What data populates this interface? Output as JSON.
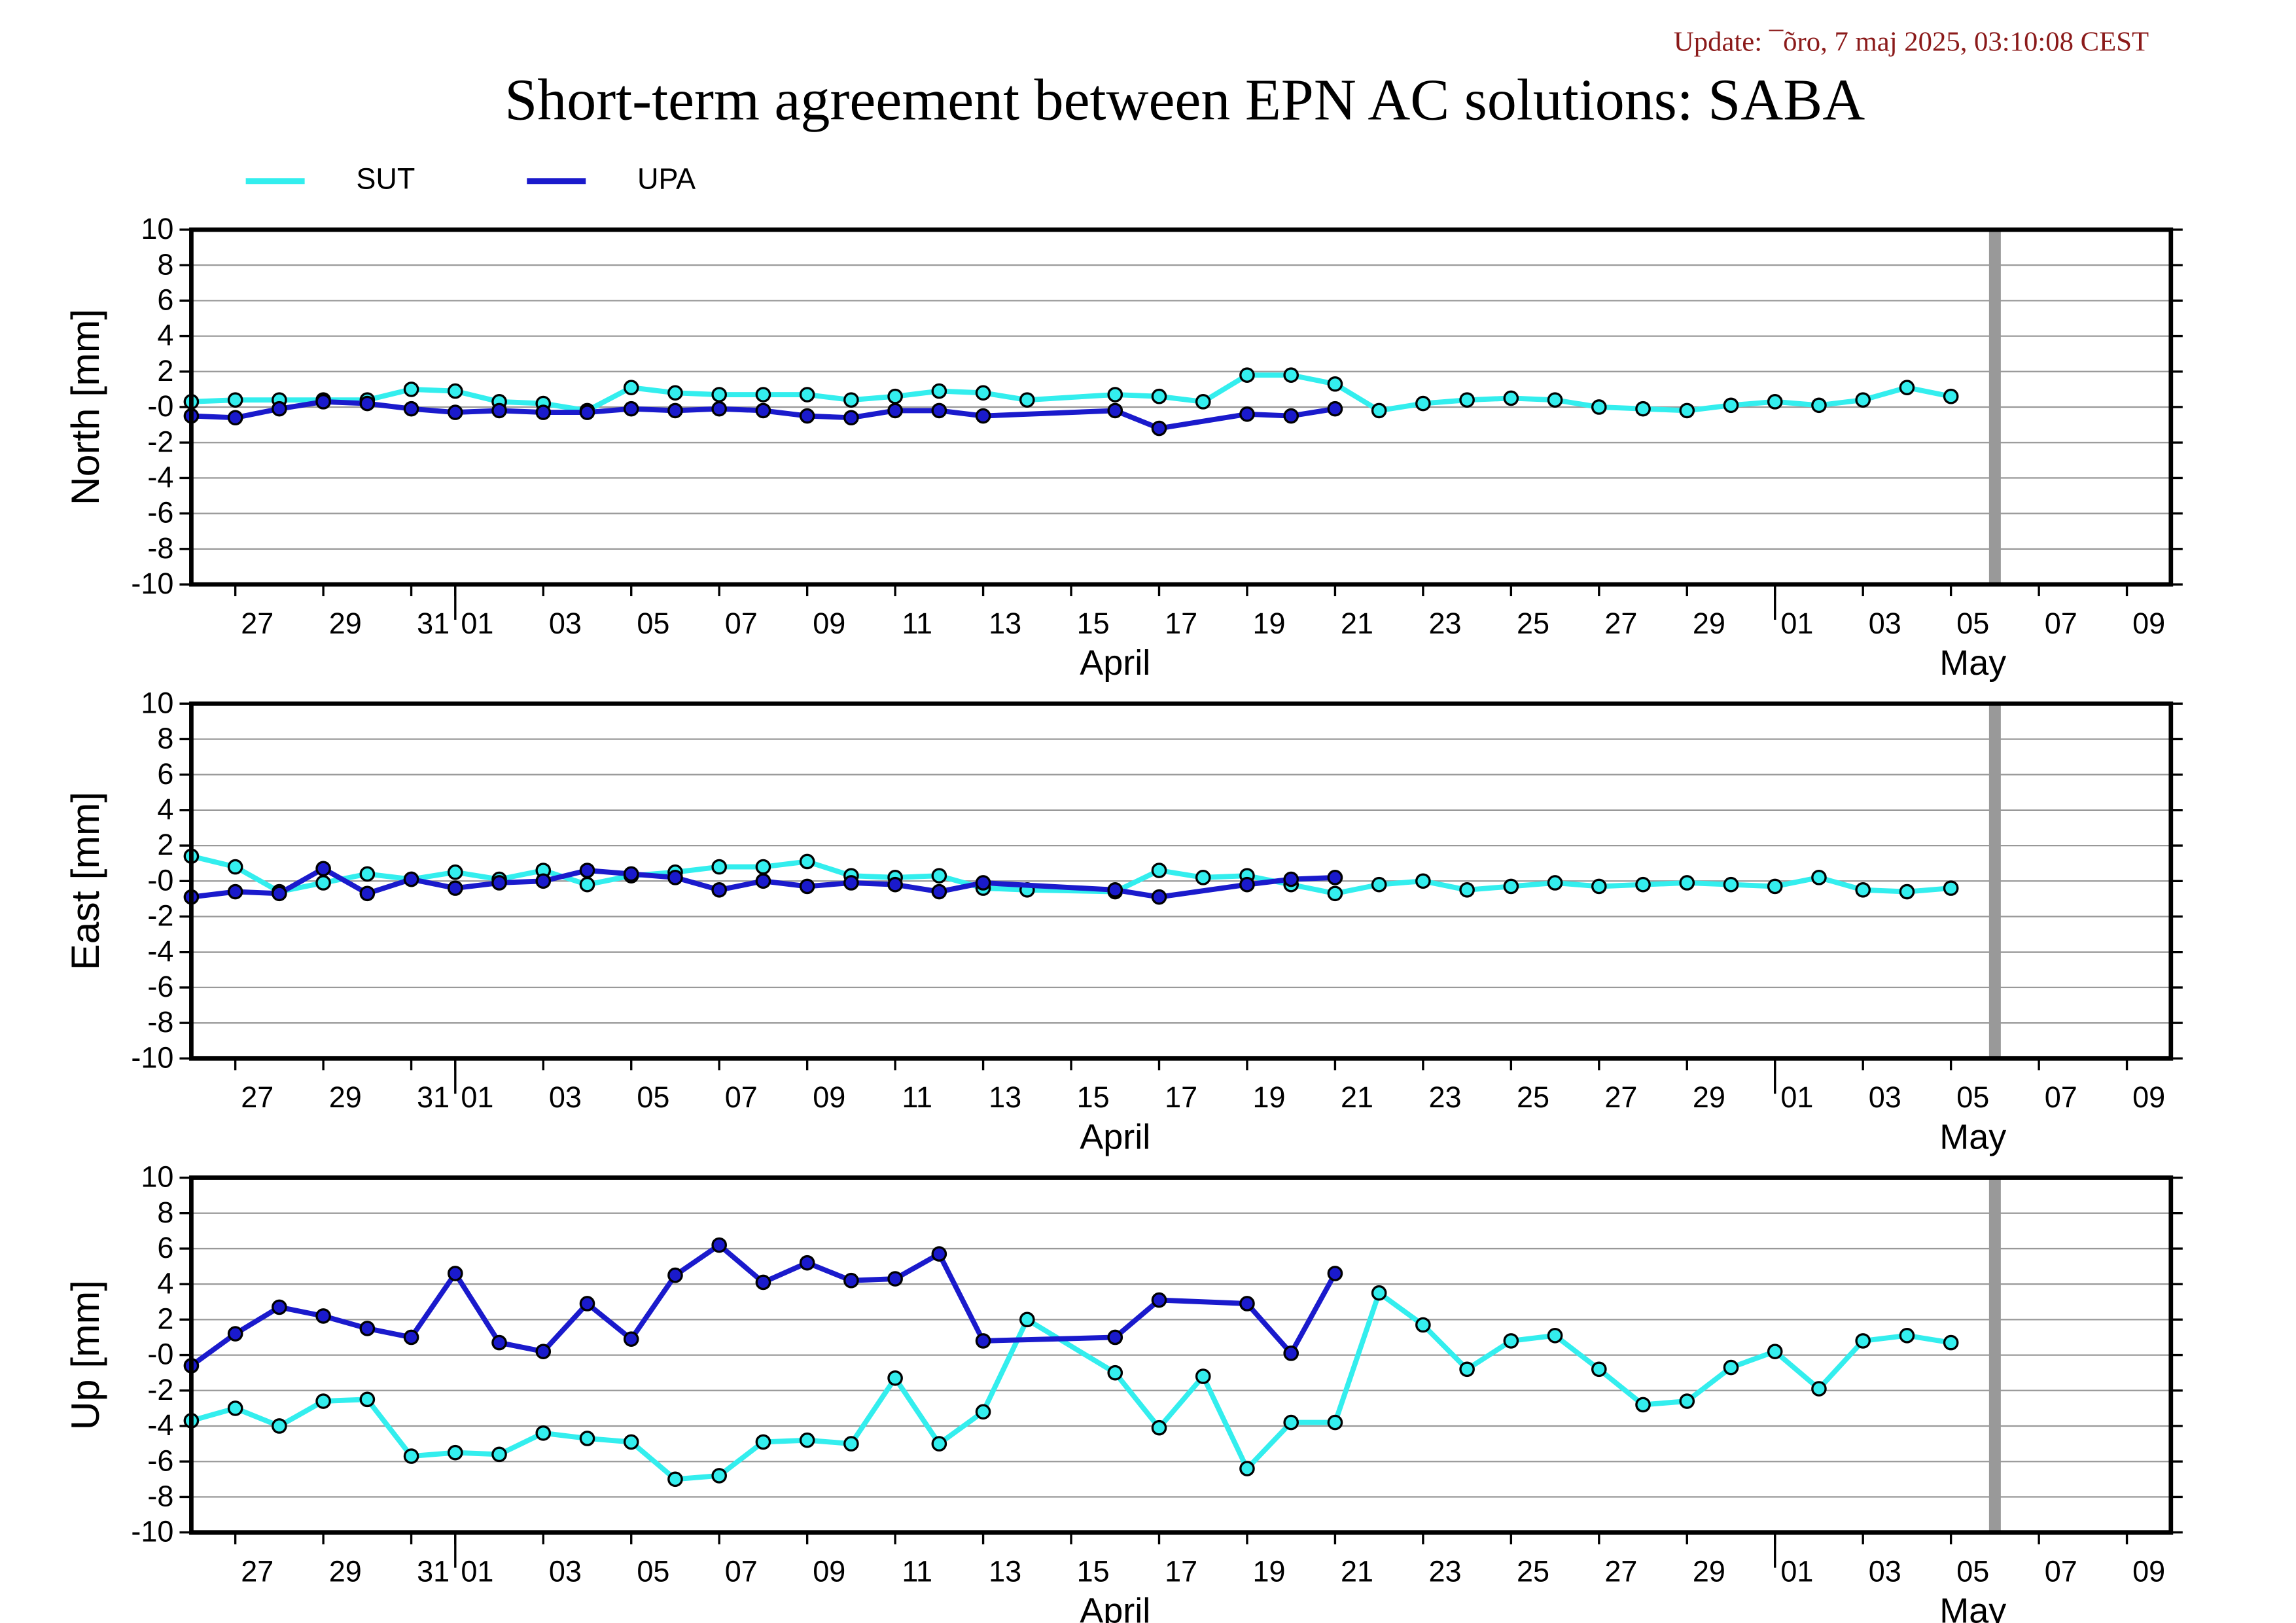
{
  "title": "Short-term agreement between EPN AC solutions: SABA",
  "update": "Update: ¯õro, 7 maj 2025, 03:10:08 CEST",
  "chart_data": [
    {
      "type": "line",
      "ylabel": "North [mm]",
      "grid": true,
      "xlim": [
        "03-26",
        "05-10"
      ],
      "vline": "05-06",
      "ylim": [
        -10,
        10
      ],
      "yticks": [
        -10,
        -8,
        -6,
        -4,
        -2,
        {
          "value": 0,
          "label": "-0"
        },
        2,
        4,
        6,
        8,
        10
      ],
      "xticks": [
        {
          "value": "03-27",
          "label": "27"
        },
        {
          "value": "03-29",
          "label": "29"
        },
        {
          "value": "03-31",
          "label": "31"
        },
        {
          "value": "04-01",
          "label": "01"
        },
        {
          "value": "04-03",
          "label": "03"
        },
        {
          "value": "04-05",
          "label": "05"
        },
        {
          "value": "04-07",
          "label": "07"
        },
        {
          "value": "04-09",
          "label": "09"
        },
        {
          "value": "04-11",
          "label": "11"
        },
        {
          "value": "04-13",
          "label": "13"
        },
        {
          "value": "04-15",
          "label": "15"
        },
        {
          "value": "04-17",
          "label": "17"
        },
        {
          "value": "04-19",
          "label": "19"
        },
        {
          "value": "04-21",
          "label": "21"
        },
        {
          "value": "04-23",
          "label": "23"
        },
        {
          "value": "04-25",
          "label": "25"
        },
        {
          "value": "04-27",
          "label": "27"
        },
        {
          "value": "04-29",
          "label": "29"
        },
        {
          "value": "05-01",
          "label": "01"
        },
        {
          "value": "05-03",
          "label": "03"
        },
        {
          "value": "05-05",
          "label": "05"
        },
        {
          "value": "05-07",
          "label": "07"
        },
        {
          "value": "05-09",
          "label": "09"
        }
      ],
      "months": [
        "April",
        "May"
      ],
      "series": [
        {
          "name": "SUT",
          "color": "#33eeee",
          "x": [
            "03-26",
            "03-27",
            "03-28",
            "03-29",
            "03-30",
            "03-31",
            "04-01",
            "04-02",
            "04-03",
            "04-04",
            "04-05",
            "04-06",
            "04-07",
            "04-08",
            "04-09",
            "04-10",
            "04-11",
            "04-12",
            "04-13",
            "04-14",
            "04-16",
            "04-17",
            "04-18",
            "04-19",
            "04-20",
            "04-21",
            "04-22",
            "04-23",
            "04-24",
            "04-25",
            "04-26",
            "04-27",
            "04-28",
            "04-29",
            "04-30",
            "05-01",
            "05-02",
            "05-03",
            "05-04",
            "05-05"
          ],
          "values": [
            0.3,
            0.4,
            0.4,
            0.4,
            0.4,
            1.0,
            0.9,
            0.3,
            0.2,
            -0.2,
            1.1,
            0.8,
            0.7,
            0.7,
            0.7,
            0.4,
            0.6,
            0.9,
            0.8,
            0.4,
            0.7,
            0.6,
            0.3,
            1.8,
            1.8,
            1.3,
            -0.2,
            0.2,
            0.4,
            0.5,
            0.4,
            0.0,
            -0.1,
            -0.2,
            0.1,
            0.3,
            0.1,
            0.4,
            1.1,
            0.6
          ]
        },
        {
          "name": "UPA",
          "color": "#1a1acc",
          "x": [
            "03-26",
            "03-27",
            "03-28",
            "03-29",
            "03-30",
            "03-31",
            "04-01",
            "04-02",
            "04-03",
            "04-04",
            "04-05",
            "04-06",
            "04-07",
            "04-08",
            "04-09",
            "04-10",
            "04-11",
            "04-12",
            "04-13",
            "04-16",
            "04-17",
            "04-19",
            "04-20",
            "04-21"
          ],
          "values": [
            -0.5,
            -0.6,
            -0.1,
            0.3,
            0.2,
            -0.1,
            -0.3,
            -0.2,
            -0.3,
            -0.3,
            -0.1,
            -0.2,
            -0.1,
            -0.2,
            -0.5,
            -0.6,
            -0.2,
            -0.2,
            -0.5,
            -0.2,
            -1.2,
            -0.4,
            -0.5,
            -0.1
          ]
        }
      ]
    },
    {
      "type": "line",
      "ylabel": "East [mm]",
      "grid": true,
      "xlim": [
        "03-26",
        "05-10"
      ],
      "vline": "05-06",
      "ylim": [
        -10,
        10
      ],
      "yticks": [
        -10,
        -8,
        -6,
        -4,
        -2,
        {
          "value": 0,
          "label": "-0"
        },
        2,
        4,
        6,
        8,
        10
      ],
      "xticks": [
        {
          "value": "03-27",
          "label": "27"
        },
        {
          "value": "03-29",
          "label": "29"
        },
        {
          "value": "03-31",
          "label": "31"
        },
        {
          "value": "04-01",
          "label": "01"
        },
        {
          "value": "04-03",
          "label": "03"
        },
        {
          "value": "04-05",
          "label": "05"
        },
        {
          "value": "04-07",
          "label": "07"
        },
        {
          "value": "04-09",
          "label": "09"
        },
        {
          "value": "04-11",
          "label": "11"
        },
        {
          "value": "04-13",
          "label": "13"
        },
        {
          "value": "04-15",
          "label": "15"
        },
        {
          "value": "04-17",
          "label": "17"
        },
        {
          "value": "04-19",
          "label": "19"
        },
        {
          "value": "04-21",
          "label": "21"
        },
        {
          "value": "04-23",
          "label": "23"
        },
        {
          "value": "04-25",
          "label": "25"
        },
        {
          "value": "04-27",
          "label": "27"
        },
        {
          "value": "04-29",
          "label": "29"
        },
        {
          "value": "05-01",
          "label": "01"
        },
        {
          "value": "05-03",
          "label": "03"
        },
        {
          "value": "05-05",
          "label": "05"
        },
        {
          "value": "05-07",
          "label": "07"
        },
        {
          "value": "05-09",
          "label": "09"
        }
      ],
      "months": [
        "April",
        "May"
      ],
      "series": [
        {
          "color": "#33eeee",
          "x": [
            "03-26",
            "03-27",
            "03-28",
            "03-29",
            "03-30",
            "03-31",
            "04-01",
            "04-02",
            "04-03",
            "04-04",
            "04-05",
            "04-06",
            "04-07",
            "04-08",
            "04-09",
            "04-10",
            "04-11",
            "04-12",
            "04-13",
            "04-14",
            "04-16",
            "04-17",
            "04-18",
            "04-19",
            "04-20",
            "04-21",
            "04-22",
            "04-23",
            "04-24",
            "04-25",
            "04-26",
            "04-27",
            "04-28",
            "04-29",
            "04-30",
            "05-01",
            "05-02",
            "05-03",
            "05-04",
            "05-05"
          ],
          "values": [
            1.4,
            0.8,
            -0.6,
            -0.1,
            0.4,
            0.1,
            0.5,
            0.1,
            0.6,
            -0.2,
            0.3,
            0.5,
            0.8,
            0.8,
            1.1,
            0.3,
            0.2,
            0.3,
            -0.4,
            -0.5,
            -0.6,
            0.6,
            0.2,
            0.3,
            -0.2,
            -0.7,
            -0.2,
            0.0,
            -0.5,
            -0.3,
            -0.1,
            -0.3,
            -0.2,
            -0.1,
            -0.2,
            -0.3,
            0.2,
            -0.5,
            -0.6,
            -0.4
          ]
        },
        {
          "color": "#1a1acc",
          "x": [
            "03-26",
            "03-27",
            "03-28",
            "03-29",
            "03-30",
            "03-31",
            "04-01",
            "04-02",
            "04-03",
            "04-04",
            "04-05",
            "04-06",
            "04-07",
            "04-08",
            "04-09",
            "04-10",
            "04-11",
            "04-12",
            "04-13",
            "04-16",
            "04-17",
            "04-19",
            "04-20",
            "04-21"
          ],
          "values": [
            -0.9,
            -0.6,
            -0.7,
            0.7,
            -0.7,
            0.1,
            -0.4,
            -0.1,
            0.0,
            0.6,
            0.4,
            0.2,
            -0.5,
            0.0,
            -0.3,
            -0.1,
            -0.2,
            -0.6,
            -0.1,
            -0.5,
            -0.9,
            -0.2,
            0.1,
            0.2
          ]
        }
      ]
    },
    {
      "type": "line",
      "ylabel": "Up [mm]",
      "grid": true,
      "xlim": [
        "03-26",
        "05-10"
      ],
      "vline": "05-06",
      "ylim": [
        -10,
        10
      ],
      "yticks": [
        -10,
        -8,
        -6,
        -4,
        -2,
        {
          "value": 0,
          "label": "-0"
        },
        2,
        4,
        6,
        8,
        10
      ],
      "xticks": [
        {
          "value": "03-27",
          "label": "27"
        },
        {
          "value": "03-29",
          "label": "29"
        },
        {
          "value": "03-31",
          "label": "31"
        },
        {
          "value": "04-01",
          "label": "01"
        },
        {
          "value": "04-03",
          "label": "03"
        },
        {
          "value": "04-05",
          "label": "05"
        },
        {
          "value": "04-07",
          "label": "07"
        },
        {
          "value": "04-09",
          "label": "09"
        },
        {
          "value": "04-11",
          "label": "11"
        },
        {
          "value": "04-13",
          "label": "13"
        },
        {
          "value": "04-15",
          "label": "15"
        },
        {
          "value": "04-17",
          "label": "17"
        },
        {
          "value": "04-19",
          "label": "19"
        },
        {
          "value": "04-21",
          "label": "21"
        },
        {
          "value": "04-23",
          "label": "23"
        },
        {
          "value": "04-25",
          "label": "25"
        },
        {
          "value": "04-27",
          "label": "27"
        },
        {
          "value": "04-29",
          "label": "29"
        },
        {
          "value": "05-01",
          "label": "01"
        },
        {
          "value": "05-03",
          "label": "03"
        },
        {
          "value": "05-05",
          "label": "05"
        },
        {
          "value": "05-07",
          "label": "07"
        },
        {
          "value": "05-09",
          "label": "09"
        }
      ],
      "months": [
        "April",
        "May"
      ],
      "series": [
        {
          "color": "#33eeee",
          "x": [
            "03-26",
            "03-27",
            "03-28",
            "03-29",
            "03-30",
            "03-31",
            "04-01",
            "04-02",
            "04-03",
            "04-04",
            "04-05",
            "04-06",
            "04-07",
            "04-08",
            "04-09",
            "04-10",
            "04-11",
            "04-12",
            "04-13",
            "04-14",
            "04-16",
            "04-17",
            "04-18",
            "04-19",
            "04-20",
            "04-21",
            "04-22",
            "04-23",
            "04-24",
            "04-25",
            "04-26",
            "04-27",
            "04-28",
            "04-29",
            "04-30",
            "05-01",
            "05-02",
            "05-03",
            "05-04",
            "05-05"
          ],
          "values": [
            -3.7,
            -3.0,
            -4.0,
            -2.6,
            -2.5,
            -5.7,
            -5.5,
            -5.6,
            -4.4,
            -4.7,
            -4.9,
            -7.0,
            -6.8,
            -4.9,
            -4.8,
            -5.0,
            -1.3,
            -5.0,
            -3.2,
            2.0,
            -1.0,
            -4.1,
            -1.2,
            -6.4,
            -3.8,
            -3.8,
            3.5,
            1.7,
            -0.8,
            0.8,
            1.1,
            -0.8,
            -2.8,
            -2.6,
            -0.7,
            0.2,
            -1.9,
            0.8,
            1.1,
            0.7
          ]
        },
        {
          "color": "#1a1acc",
          "x": [
            "03-26",
            "03-27",
            "03-28",
            "03-29",
            "03-30",
            "03-31",
            "04-01",
            "04-02",
            "04-03",
            "04-04",
            "04-05",
            "04-06",
            "04-07",
            "04-08",
            "04-09",
            "04-10",
            "04-11",
            "04-12",
            "04-13",
            "04-16",
            "04-17",
            "04-19",
            "04-20",
            "04-21"
          ],
          "values": [
            -0.6,
            1.2,
            2.7,
            2.2,
            1.5,
            1.0,
            4.6,
            0.7,
            0.2,
            2.9,
            0.9,
            4.5,
            6.2,
            4.1,
            5.2,
            4.2,
            4.3,
            5.7,
            0.8,
            1.0,
            3.1,
            2.9,
            0.1,
            4.6
          ]
        }
      ]
    }
  ]
}
